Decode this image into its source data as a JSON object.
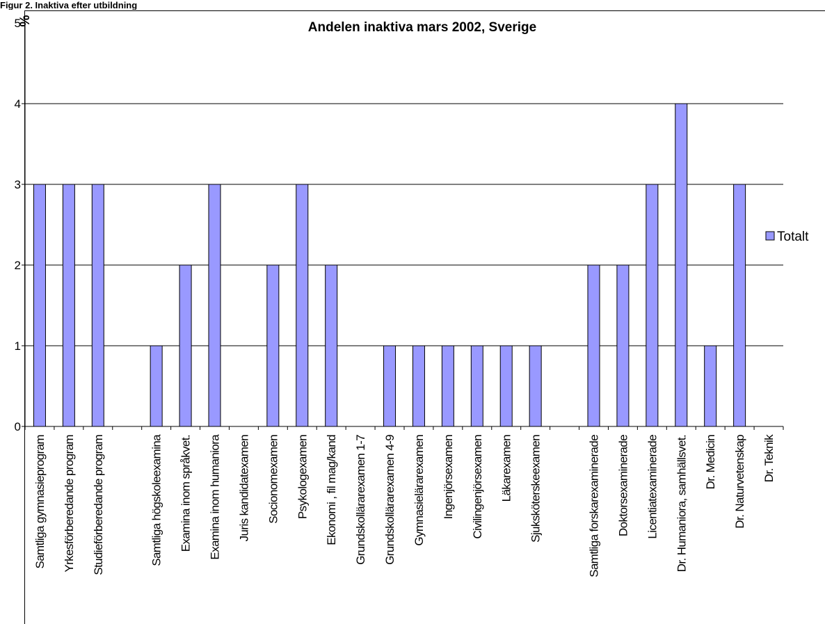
{
  "caption": "Figur 2. Inaktiva efter utbildning",
  "chart_data": {
    "type": "bar",
    "title": "Andelen inaktiva mars 2002, Sverige",
    "ylabel": "%",
    "ylim": [
      0,
      5
    ],
    "yticks": [
      0,
      1,
      2,
      3,
      4,
      5
    ],
    "grid": true,
    "legend": "right",
    "bar_color": "#9999ff",
    "categories": [
      "Samtliga gymnasieprogram",
      "Yrkesförberedande program",
      "Studieförberedande program",
      "",
      "Samtliga högskoleexamina",
      "Examina inom språkvet.",
      "Examina inom humaniora",
      "Juris kandidatexamen",
      "Socionomexamen",
      "Psykologexamen",
      "Ekonomi , fil mag/kand",
      "Grundskollärarexamen 1-7",
      "Grundskollärarexamen 4-9",
      "Gymnasielärarexamen",
      "Ingenjörsexamen",
      "Civilingenjörsexamen",
      "Läkarexamen",
      "Sjuksköterskeexamen",
      "",
      "Samtliga forskarexaminerade",
      "Doktorsexaminerade",
      "Licentiatexaminerade",
      "Dr. Humaniora, samhällsvet.",
      "Dr. Medicin",
      "Dr. Naturvetenskap",
      "Dr. Teknik"
    ],
    "series": [
      {
        "name": "Totalt",
        "values": [
          3,
          3,
          3,
          null,
          1,
          2,
          3,
          0,
          2,
          3,
          2,
          0,
          1,
          1,
          1,
          1,
          1,
          1,
          null,
          2,
          2,
          3,
          4,
          1,
          3,
          0
        ]
      }
    ]
  }
}
